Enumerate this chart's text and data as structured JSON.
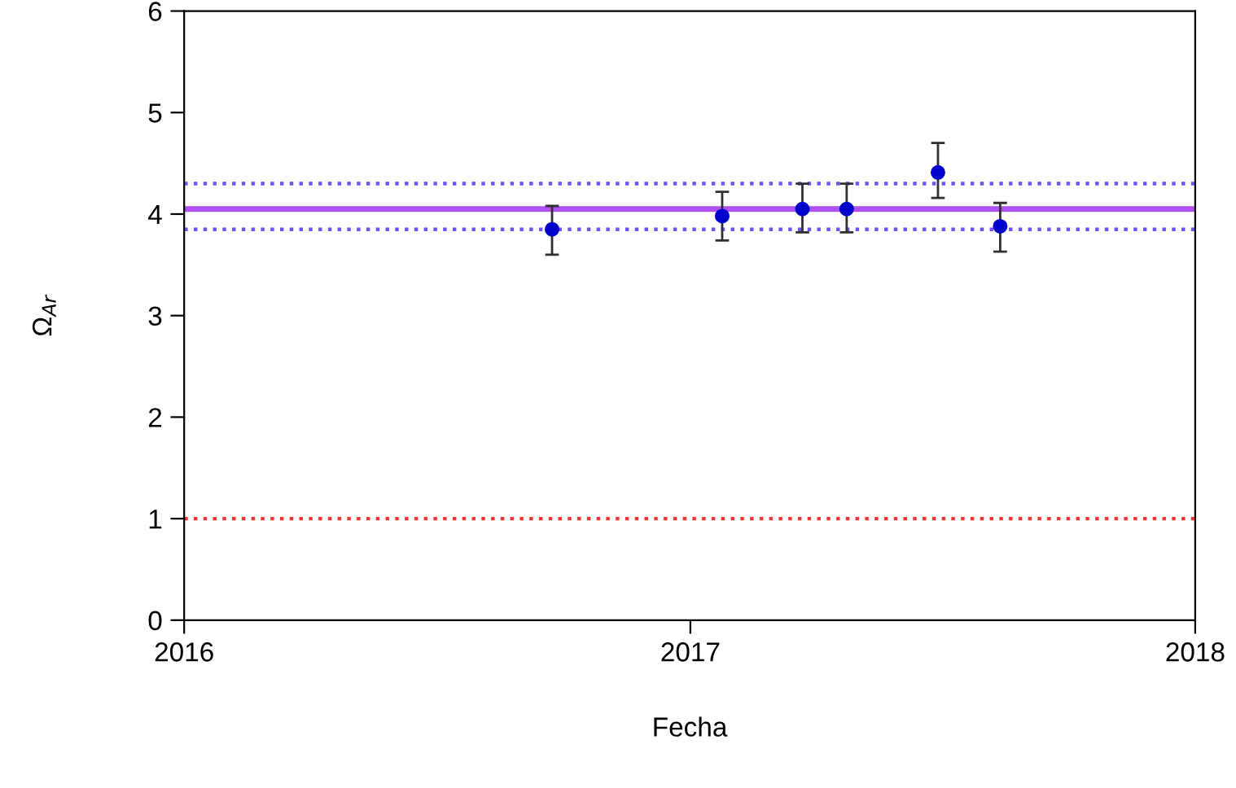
{
  "chart_data": {
    "type": "scatter",
    "xlabel": "Fecha",
    "ylabel": "Ω$_{Ar}$",
    "x": [
      "2016-09-23",
      "2017-01-24",
      "2017-03-23",
      "2017-04-24",
      "2017-06-29",
      "2017-08-13"
    ],
    "series": [
      {
        "color": "#0000cc",
        "values": [
          3.85,
          3.98,
          4.05,
          4.05,
          4.41,
          3.88
        ],
        "errors": [
          [
            3.6,
            4.08
          ],
          [
            3.74,
            4.22
          ],
          [
            3.82,
            4.3
          ],
          [
            3.82,
            4.3
          ],
          [
            4.16,
            4.7
          ],
          [
            3.63,
            4.11
          ]
        ]
      }
    ],
    "marker": "circle",
    "xlim": [
      "2016-01-01",
      "2018-01-01"
    ],
    "xticks": [
      {
        "value": "2016-01-01",
        "label": "2016"
      },
      {
        "value": "2017-01-01",
        "label": "2017"
      },
      {
        "value": "2018-01-01",
        "label": "2018"
      }
    ],
    "ylim": [
      0,
      6
    ],
    "yticks": [
      0,
      1,
      2,
      3,
      4,
      5,
      6
    ],
    "ref_lines": [
      {
        "axis": "y",
        "value": 4.05,
        "color": "#b050f0",
        "line_style": "solid"
      },
      {
        "axis": "y",
        "value": 4.3,
        "color": "#7050ff",
        "line_style": "dotted"
      },
      {
        "axis": "y",
        "value": 3.85,
        "color": "#7050ff",
        "line_style": "dotted"
      },
      {
        "axis": "y",
        "value": 1,
        "color": "#ff3030",
        "line_style": "dotted"
      }
    ],
    "grid": false
  }
}
